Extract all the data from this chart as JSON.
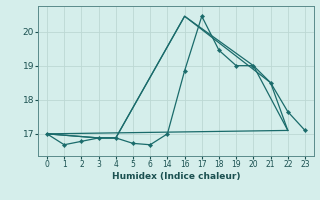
{
  "xlabel": "Humidex (Indice chaleur)",
  "bg_color": "#d5eeeb",
  "grid_color": "#bcd8d4",
  "line_color": "#1a6b6b",
  "xlim": [
    -0.5,
    15.5
  ],
  "ylim": [
    16.35,
    20.75
  ],
  "yticks": [
    17,
    18,
    19,
    20
  ],
  "xtick_labels": [
    "0",
    "1",
    "2",
    "3",
    "4",
    "5",
    "6",
    "14",
    "16",
    "17",
    "18",
    "19",
    "20",
    "21",
    "22",
    "23"
  ],
  "series": [
    {
      "x": [
        0,
        1,
        2,
        3,
        4,
        5,
        6,
        7,
        8,
        9,
        10,
        11,
        12,
        13,
        14,
        15
      ],
      "y": [
        17.0,
        16.68,
        16.78,
        16.88,
        16.88,
        16.72,
        16.68,
        17.0,
        18.85,
        20.45,
        19.45,
        19.0,
        19.0,
        18.5,
        17.65,
        17.1
      ]
    },
    {
      "x": [
        0,
        3,
        4,
        8,
        12,
        14
      ],
      "y": [
        17.0,
        16.88,
        16.88,
        20.45,
        19.0,
        17.1
      ]
    },
    {
      "x": [
        0,
        3,
        4,
        8,
        13,
        14
      ],
      "y": [
        17.0,
        16.88,
        16.88,
        20.45,
        18.5,
        17.1
      ]
    },
    {
      "x": [
        0,
        14
      ],
      "y": [
        17.0,
        17.1
      ]
    }
  ],
  "marker_series": 0
}
